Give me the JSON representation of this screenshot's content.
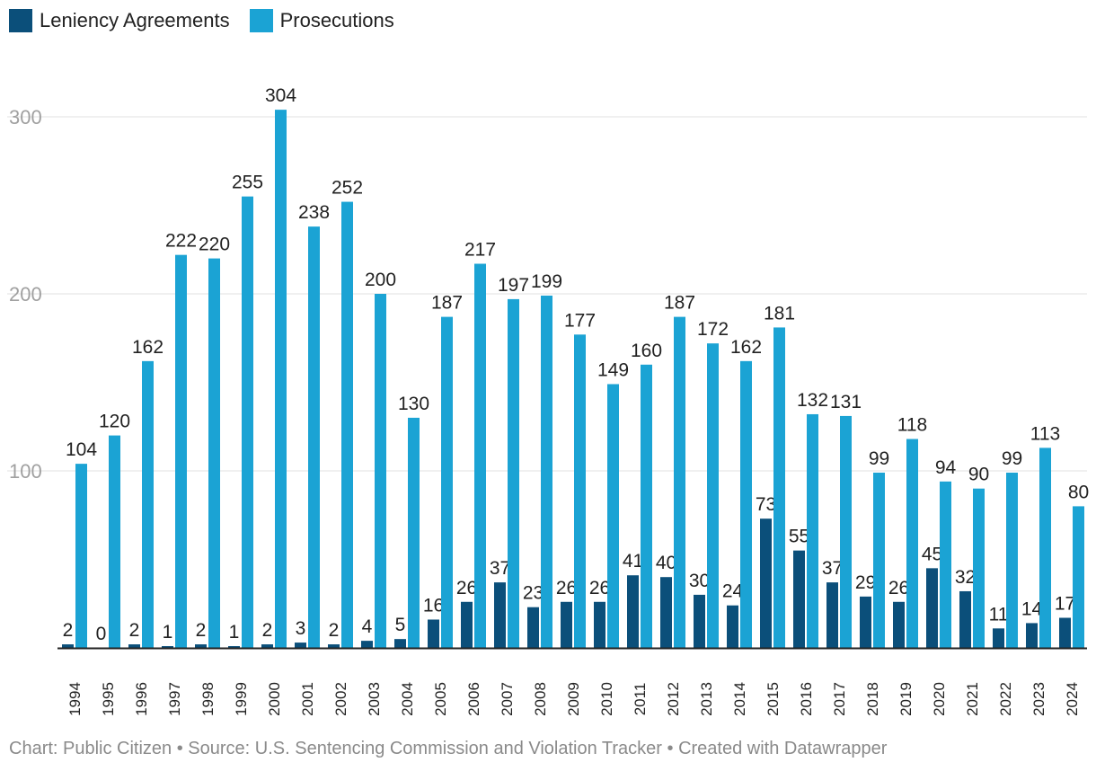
{
  "chart_data": {
    "type": "bar",
    "title": "",
    "xlabel": "",
    "ylabel": "",
    "ylim": [
      0,
      300
    ],
    "yticks": [
      100,
      200,
      300
    ],
    "grid": true,
    "legend_position": "top-left",
    "categories": [
      "1994",
      "1995",
      "1996",
      "1997",
      "1998",
      "1999",
      "2000",
      "2001",
      "2002",
      "2003",
      "2004",
      "2005",
      "2006",
      "2007",
      "2008",
      "2009",
      "2010",
      "2011",
      "2012",
      "2013",
      "2014",
      "2015",
      "2016",
      "2017",
      "2018",
      "2019",
      "2020",
      "2021",
      "2022",
      "2023",
      "2024"
    ],
    "series": [
      {
        "name": "Leniency Agreements",
        "color": "#0b4f7a",
        "values": [
          2,
          0,
          2,
          1,
          2,
          1,
          2,
          3,
          2,
          4,
          5,
          16,
          26,
          37,
          23,
          26,
          26,
          41,
          40,
          30,
          24,
          73,
          55,
          37,
          29,
          26,
          45,
          32,
          11,
          14,
          17
        ]
      },
      {
        "name": "Prosecutions",
        "color": "#1ba3d4",
        "values": [
          104,
          120,
          162,
          222,
          220,
          255,
          304,
          238,
          252,
          200,
          130,
          187,
          217,
          197,
          199,
          177,
          149,
          160,
          187,
          172,
          162,
          181,
          132,
          131,
          99,
          118,
          94,
          90,
          99,
          113,
          80
        ]
      }
    ]
  },
  "legend": {
    "items": [
      {
        "label": "Leniency Agreements",
        "color": "#0b4f7a"
      },
      {
        "label": "Prosecutions",
        "color": "#1ba3d4"
      }
    ]
  },
  "footer": {
    "text": "Chart: Public Citizen • Source: U.S. Sentencing Commission and Violation Tracker • Created with Datawrapper"
  }
}
